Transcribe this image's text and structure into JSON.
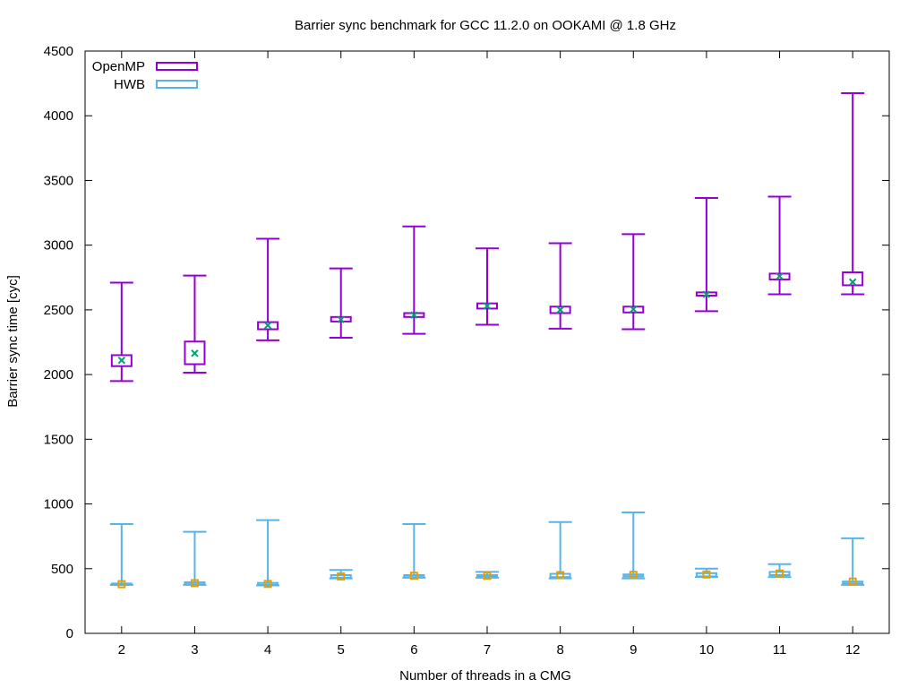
{
  "chart_data": {
    "type": "boxplot",
    "title": "Barrier sync benchmark for GCC 11.2.0 on OOKAMI @ 1.8 GHz",
    "xlabel": "Number of threads in a CMG",
    "ylabel": "Barrier sync time [cyc]",
    "xlim": [
      1.5,
      12.5
    ],
    "ylim": [
      0,
      4500
    ],
    "xticks": [
      2,
      3,
      4,
      5,
      6,
      7,
      8,
      9,
      10,
      11,
      12
    ],
    "yticks": [
      0,
      500,
      1000,
      1500,
      2000,
      2500,
      3000,
      3500,
      4000,
      4500
    ],
    "legend_position": "top-left",
    "series": [
      {
        "name": "OpenMP",
        "color": "#9400d3",
        "marker_color": "#009e73",
        "marker": "x",
        "points": [
          {
            "x": 2,
            "min": 1950,
            "q1": 2065,
            "q3": 2150,
            "max": 2710,
            "mean": 2110
          },
          {
            "x": 3,
            "min": 2015,
            "q1": 2080,
            "q3": 2255,
            "max": 2765,
            "mean": 2165
          },
          {
            "x": 4,
            "min": 2265,
            "q1": 2350,
            "q3": 2405,
            "max": 3050,
            "mean": 2380
          },
          {
            "x": 5,
            "min": 2285,
            "q1": 2410,
            "q3": 2445,
            "max": 2820,
            "mean": 2425
          },
          {
            "x": 6,
            "min": 2315,
            "q1": 2445,
            "q3": 2475,
            "max": 3145,
            "mean": 2460
          },
          {
            "x": 7,
            "min": 2385,
            "q1": 2510,
            "q3": 2550,
            "max": 2975,
            "mean": 2530
          },
          {
            "x": 8,
            "min": 2355,
            "q1": 2475,
            "q3": 2525,
            "max": 3015,
            "mean": 2500
          },
          {
            "x": 9,
            "min": 2350,
            "q1": 2480,
            "q3": 2525,
            "max": 3085,
            "mean": 2505
          },
          {
            "x": 10,
            "min": 2490,
            "q1": 2610,
            "q3": 2635,
            "max": 3365,
            "mean": 2620
          },
          {
            "x": 11,
            "min": 2620,
            "q1": 2735,
            "q3": 2780,
            "max": 3375,
            "mean": 2760
          },
          {
            "x": 12,
            "min": 2620,
            "q1": 2690,
            "q3": 2790,
            "max": 4175,
            "mean": 2715
          }
        ]
      },
      {
        "name": "HWB",
        "color": "#56b4e9",
        "marker_color": "#e69f00",
        "marker": "square",
        "points": [
          {
            "x": 2,
            "min": 375,
            "q1": 375,
            "q3": 385,
            "max": 845,
            "mean": 380
          },
          {
            "x": 3,
            "min": 375,
            "q1": 380,
            "q3": 395,
            "max": 785,
            "mean": 388
          },
          {
            "x": 4,
            "min": 370,
            "q1": 375,
            "q3": 390,
            "max": 875,
            "mean": 382
          },
          {
            "x": 5,
            "min": 425,
            "q1": 430,
            "q3": 450,
            "max": 490,
            "mean": 440
          },
          {
            "x": 6,
            "min": 430,
            "q1": 435,
            "q3": 450,
            "max": 845,
            "mean": 445
          },
          {
            "x": 7,
            "min": 430,
            "q1": 440,
            "q3": 450,
            "max": 475,
            "mean": 445
          },
          {
            "x": 8,
            "min": 425,
            "q1": 435,
            "q3": 460,
            "max": 860,
            "mean": 450
          },
          {
            "x": 9,
            "min": 425,
            "q1": 440,
            "q3": 455,
            "max": 935,
            "mean": 452
          },
          {
            "x": 10,
            "min": 435,
            "q1": 440,
            "q3": 465,
            "max": 500,
            "mean": 455
          },
          {
            "x": 11,
            "min": 435,
            "q1": 450,
            "q3": 475,
            "max": 535,
            "mean": 462
          },
          {
            "x": 12,
            "min": 375,
            "q1": 385,
            "q3": 400,
            "max": 735,
            "mean": 400
          }
        ]
      }
    ]
  }
}
